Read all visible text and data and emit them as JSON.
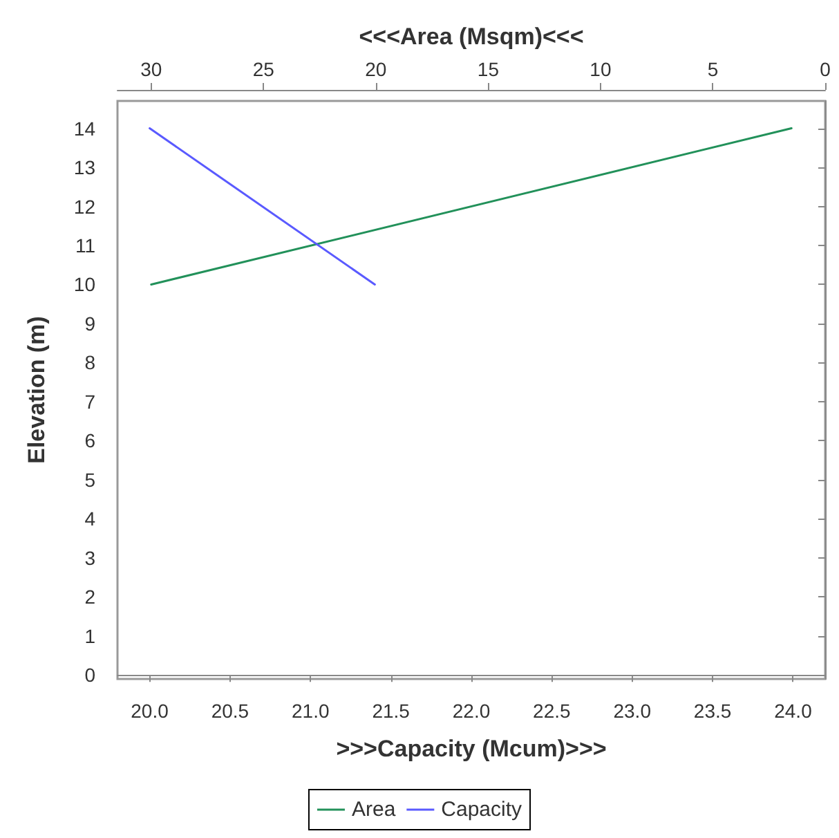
{
  "chart_data": {
    "type": "line",
    "xlabel": ">>>Capacity (Mcum)>>>",
    "x2label": "<<<Area (Msqm)<<<",
    "ylabel": "Elevation (m)",
    "xlim": [
      19.8,
      24.2
    ],
    "xticks": [
      {
        "value": 20,
        "label": "20.0"
      },
      {
        "value": 20.5,
        "label": "20.5"
      },
      {
        "value": 21,
        "label": "21.0"
      },
      {
        "value": 21.5,
        "label": "21.5"
      },
      {
        "value": 22,
        "label": "22.0"
      },
      {
        "value": 22.5,
        "label": "22.5"
      },
      {
        "value": 23,
        "label": "23.0"
      },
      {
        "value": 23.5,
        "label": "23.5"
      },
      {
        "value": 24,
        "label": "24.0"
      }
    ],
    "x2lim": [
      31.5,
      0
    ],
    "x2ticks": [
      30,
      25,
      20,
      15,
      10,
      5,
      0
    ],
    "ylim": [
      -0.1,
      14.7
    ],
    "yticks": [
      0,
      1,
      2,
      3,
      4,
      5,
      6,
      7,
      8,
      9,
      10,
      11,
      12,
      13,
      14
    ],
    "series": [
      {
        "name": "Area",
        "color": "#22915a",
        "axis": "x2",
        "x": [
          30,
          1.5
        ],
        "values": [
          10,
          14
        ]
      },
      {
        "name": "Capacity",
        "color": "#5a5aff",
        "x": [
          20.0,
          21.4
        ],
        "values": [
          14,
          10
        ]
      }
    ],
    "legend": "bottom",
    "grid": false,
    "marker": "none",
    "line_style": "solid"
  }
}
